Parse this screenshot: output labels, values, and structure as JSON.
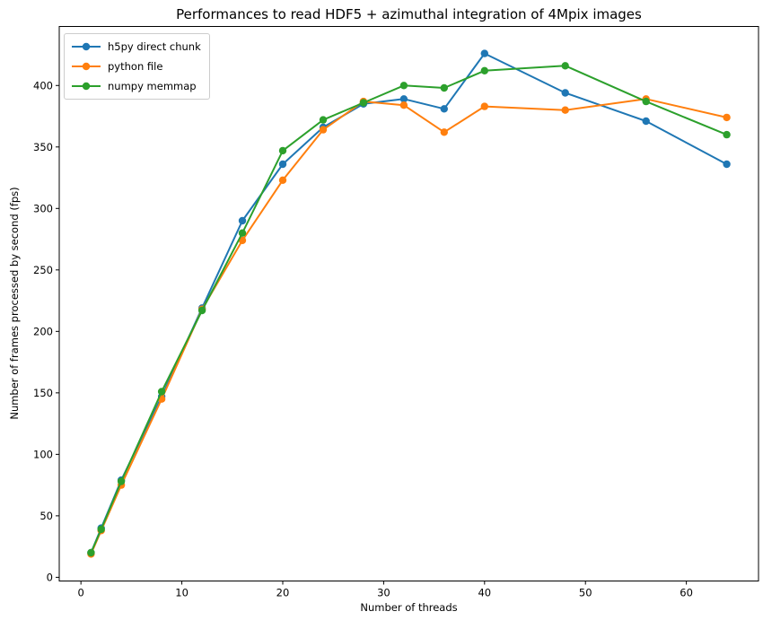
{
  "chart_data": {
    "type": "line",
    "title": "Performances to read HDF5 + azimuthal integration of 4Mpix images",
    "xlabel": "Number of threads",
    "ylabel": "Number of frames processed by second (fps)",
    "x": [
      1,
      2,
      4,
      8,
      12,
      16,
      20,
      24,
      28,
      32,
      36,
      40,
      48,
      56,
      64
    ],
    "series": [
      {
        "name": "h5py direct chunk",
        "color": "#1f77b4",
        "values": [
          20,
          40,
          79,
          147,
          219,
          290,
          336,
          366,
          385,
          389,
          381,
          426,
          394,
          371,
          336
        ]
      },
      {
        "name": "python file",
        "color": "#ff7f0e",
        "values": [
          19,
          38,
          75,
          145,
          218,
          274,
          323,
          364,
          387,
          384,
          362,
          383,
          380,
          389,
          374
        ]
      },
      {
        "name": "numpy memmap",
        "color": "#2ca02c",
        "values": [
          20,
          39,
          78,
          151,
          217,
          280,
          347,
          372,
          386,
          400,
          398,
          412,
          416,
          387,
          360
        ]
      }
    ],
    "xticks": [
      0,
      10,
      20,
      30,
      40,
      50,
      60
    ],
    "yticks": [
      0,
      50,
      100,
      150,
      200,
      250,
      300,
      350,
      400
    ],
    "xlim": [
      -2.15,
      67.15
    ],
    "ylim": [
      -3,
      448
    ],
    "grid": false,
    "legend_position": "upper left",
    "marker": "circle",
    "axis_color": "#000000",
    "background_color": "#ffffff"
  }
}
